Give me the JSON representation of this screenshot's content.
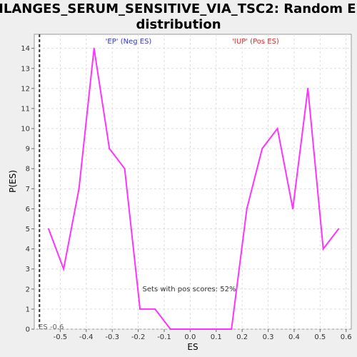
{
  "colors": {
    "background": "#efefef",
    "plot_background": "#ffffff",
    "line": "#ff33ff",
    "grid": "#dddddd",
    "neg_label": "#3333cc",
    "pos_label": "#ee2222",
    "marker": "#333333"
  },
  "chart_data": {
    "type": "line",
    "title_line1": "BILANGES_SERUM_SENSITIVE_VIA_TSC2: Random ES",
    "title_line2": "distribution",
    "xlabel": "ES",
    "ylabel": "P(ES)",
    "xlim": [
      -0.6,
      0.62
    ],
    "ylim": [
      0,
      14.7
    ],
    "x_ticks": [
      -0.5,
      -0.4,
      -0.3,
      -0.2,
      -0.1,
      0.0,
      0.1,
      0.2,
      0.3,
      0.4,
      0.5,
      0.6
    ],
    "x_tick_labels": [
      "-0.5",
      "-0.4",
      "-0.3",
      "-0.2",
      "-0.1",
      "0.0",
      "0.1",
      "0.2",
      "0.3",
      "0.4",
      "0.5",
      "0.6"
    ],
    "y_ticks": [
      0,
      1,
      2,
      3,
      4,
      5,
      6,
      7,
      8,
      9,
      10,
      11,
      12,
      13,
      14
    ],
    "y_tick_labels": [
      "0",
      "1",
      "2",
      "3",
      "4",
      "5",
      "6",
      "7",
      "8",
      "9",
      "10",
      "11",
      "12",
      "13",
      "14"
    ],
    "grid": true,
    "series": [
      {
        "x": [
          -0.545,
          -0.487,
          -0.428,
          -0.37,
          -0.311,
          -0.252,
          -0.193,
          -0.135,
          -0.076,
          -0.017,
          0.042,
          0.1,
          0.159,
          0.218,
          0.277,
          0.336,
          0.395,
          0.453,
          0.512,
          0.571
        ],
        "y": [
          5,
          3,
          7,
          14,
          9,
          8,
          1,
          1,
          0,
          0,
          0,
          0,
          0,
          6,
          9,
          10,
          6,
          12,
          4,
          5
        ]
      }
    ],
    "annotations": {
      "neg_label": "'EP' (Neg ES)",
      "pos_label": "'IUP' (Pos ES)",
      "pos_scores": "Sets with pos scores: 52%",
      "es_marker": "ES -0.6"
    },
    "es_marker_x": -0.58
  }
}
